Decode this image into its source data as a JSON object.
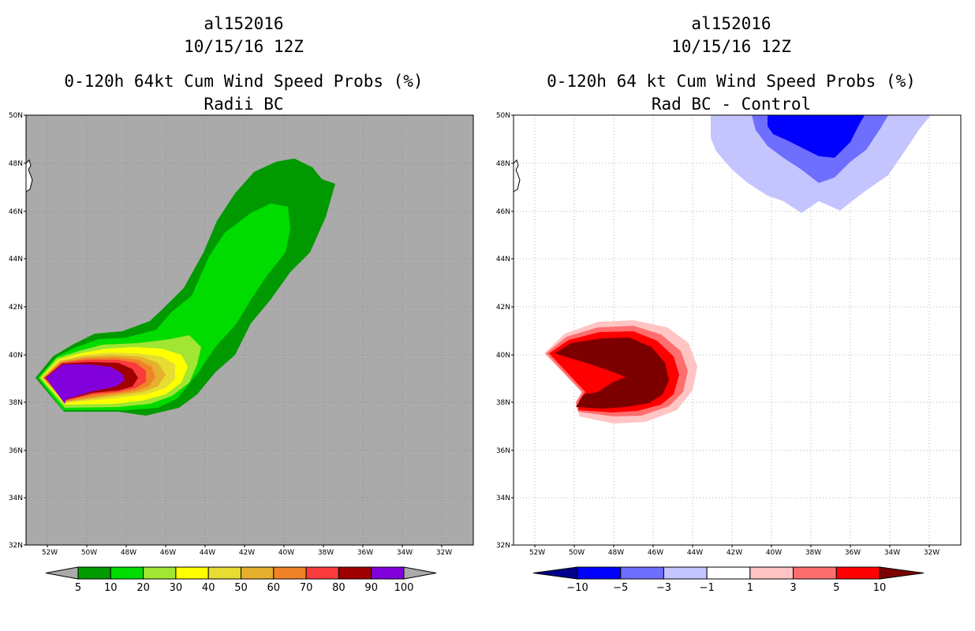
{
  "panels": [
    {
      "id": "left",
      "storm_id": "al152016",
      "datetime": "10/15/16 12Z",
      "product_title": "0-120h 64kt Cum Wind Speed Probs (%)",
      "subtitle": "Radii BC",
      "map_background": "#aaaaaa",
      "show_grid": true,
      "colorbar": {
        "labels": [
          "5",
          "10",
          "20",
          "30",
          "40",
          "50",
          "60",
          "70",
          "80",
          "90",
          "100"
        ],
        "colors": [
          "#009a00",
          "#00dc00",
          "#a0e632",
          "#ffff00",
          "#e6dc32",
          "#e6af2d",
          "#f08228",
          "#fa3c3c",
          "#a00000",
          "#8200dc"
        ],
        "end_color": "#aaaaaa"
      }
    },
    {
      "id": "right",
      "storm_id": "al152016",
      "datetime": "10/15/16 12Z",
      "product_title": "0-120h 64 kt Cum Wind Speed Probs (%)",
      "subtitle": "Rad BC - Control",
      "map_background": "#ffffff",
      "show_grid": true,
      "colorbar": {
        "labels": [
          "-10",
          "-5",
          "-3",
          "-1",
          "1",
          "3",
          "5",
          "10"
        ],
        "colors": [
          "#0000ff",
          "#6e6eff",
          "#c4c4ff",
          "#ffffff",
          "#ffc4c4",
          "#ff6e6e",
          "#ff0000"
        ],
        "left_end_color": "#00008c",
        "right_end_color": "#7d0000"
      }
    }
  ],
  "lat_labels": [
    "50N",
    "48N",
    "46N",
    "44N",
    "42N",
    "40N",
    "38N",
    "36N",
    "34N",
    "32N"
  ],
  "lon_labels": [
    "52W",
    "50W",
    "48W",
    "46W",
    "44W",
    "42W",
    "40W",
    "38W",
    "36W",
    "34W",
    "32W"
  ]
}
